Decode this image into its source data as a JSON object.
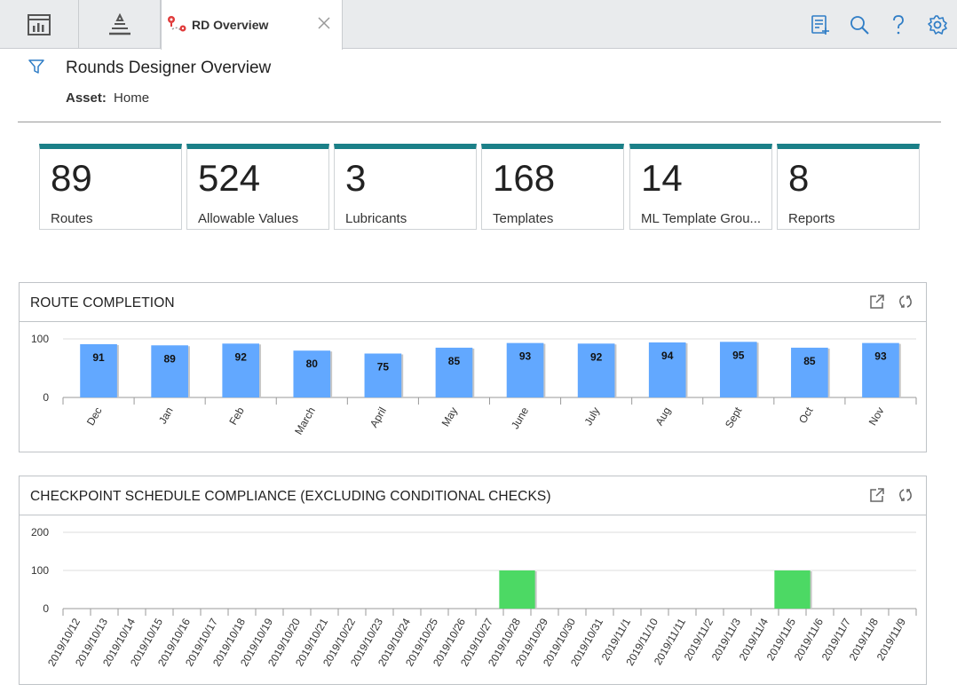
{
  "tabs": {
    "active_label": "RD Overview"
  },
  "header": {
    "title": "Rounds Designer Overview",
    "asset_label": "Asset:",
    "asset_value": "Home"
  },
  "kpis": [
    {
      "value": "89",
      "label": "Routes"
    },
    {
      "value": "524",
      "label": "Allowable Values"
    },
    {
      "value": "3",
      "label": "Lubricants"
    },
    {
      "value": "168",
      "label": "Templates"
    },
    {
      "value": "14",
      "label": "ML Template Grou..."
    },
    {
      "value": "8",
      "label": "Reports"
    }
  ],
  "colors": {
    "accent": "#1b8088",
    "icon_blue": "#2f7dc6",
    "bar_blue": "#62a8ff",
    "bar_green": "#4cd964"
  },
  "icons": [
    "dashboard-icon",
    "hierarchy-icon",
    "rd-overview-icon",
    "close-icon",
    "checklist-add-icon",
    "search-icon",
    "help-icon",
    "gear-icon",
    "filter-icon",
    "open-external-icon",
    "refresh-icon"
  ],
  "route_completion": {
    "title": "ROUTE COMPLETION",
    "chart_data": {
      "type": "bar",
      "categories": [
        "Dec",
        "Jan",
        "Feb",
        "March",
        "April",
        "May",
        "June",
        "July",
        "Aug",
        "Sept",
        "Oct",
        "Nov"
      ],
      "values": [
        91,
        89,
        92,
        80,
        75,
        85,
        93,
        92,
        94,
        95,
        85,
        93
      ],
      "yticks": [
        "0",
        "100"
      ],
      "ylim": [
        0,
        100
      ],
      "grid": true
    }
  },
  "checkpoint_compliance": {
    "title": "CHECKPOINT SCHEDULE COMPLIANCE (EXCLUDING CONDITIONAL CHECKS)",
    "chart_data": {
      "type": "bar",
      "categories": [
        "2019/10/12",
        "2019/10/13",
        "2019/10/14",
        "2019/10/15",
        "2019/10/16",
        "2019/10/17",
        "2019/10/18",
        "2019/10/19",
        "2019/10/20",
        "2019/10/21",
        "2019/10/22",
        "2019/10/23",
        "2019/10/24",
        "2019/10/25",
        "2019/10/26",
        "2019/10/27",
        "2019/10/28",
        "2019/10/29",
        "2019/10/30",
        "2019/10/31",
        "2019/11/1",
        "2019/11/10",
        "2019/11/11",
        "2019/11/2",
        "2019/11/3",
        "2019/11/4",
        "2019/11/5",
        "2019/11/6",
        "2019/11/7",
        "2019/11/8",
        "2019/11/9"
      ],
      "values": [
        0,
        0,
        0,
        0,
        0,
        0,
        0,
        0,
        0,
        0,
        0,
        0,
        0,
        0,
        0,
        0,
        100,
        0,
        0,
        0,
        0,
        0,
        0,
        0,
        0,
        0,
        100,
        0,
        0,
        0,
        0
      ],
      "yticks": [
        "0",
        "100",
        "200"
      ],
      "ylim": [
        0,
        200
      ],
      "grid": true
    }
  }
}
